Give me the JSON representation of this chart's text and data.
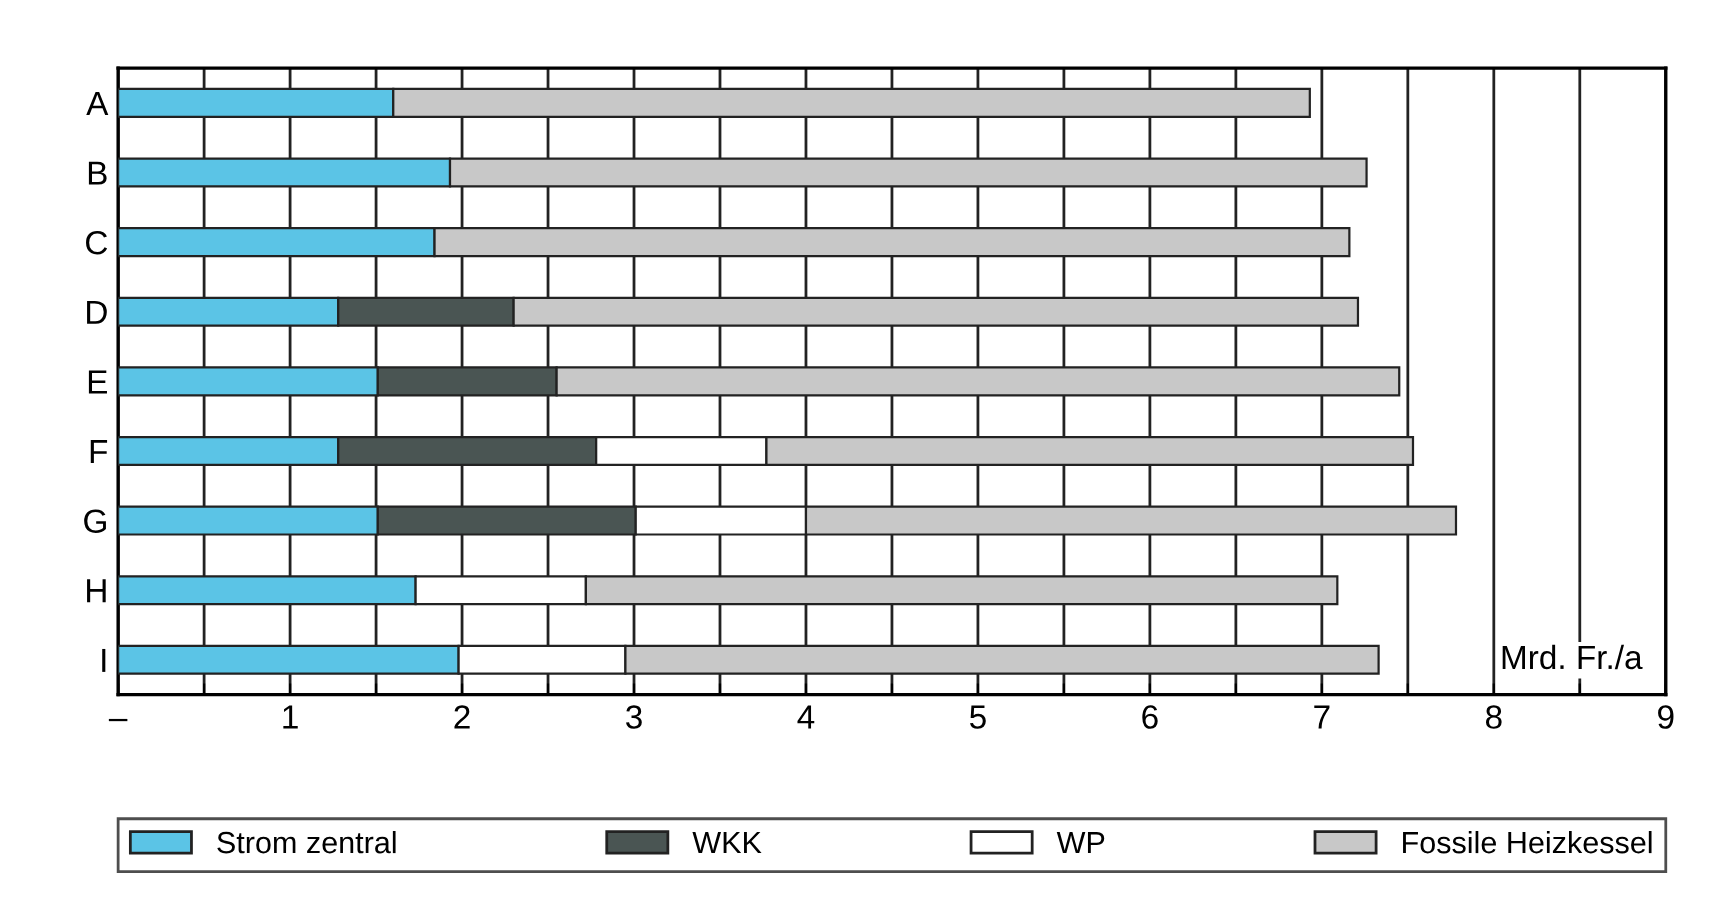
{
  "chart_data": {
    "type": "bar",
    "orientation": "horizontal",
    "stacked": true,
    "categories": [
      "A",
      "B",
      "C",
      "D",
      "E",
      "F",
      "G",
      "H",
      "I"
    ],
    "series": [
      {
        "name": "Strom zentral",
        "color": "#5bc4e6",
        "values": [
          1.6,
          1.93,
          1.84,
          1.28,
          1.51,
          1.28,
          1.51,
          1.73,
          1.98
        ]
      },
      {
        "name": "WKK",
        "color": "#4a5553",
        "values": [
          null,
          null,
          null,
          1.02,
          1.04,
          1.5,
          1.5,
          null,
          null
        ]
      },
      {
        "name": "WP",
        "color": "#ffffff",
        "values": [
          null,
          null,
          null,
          null,
          null,
          0.99,
          0.99,
          0.99,
          0.97
        ]
      },
      {
        "name": "Fossile Heizkessel",
        "color": "#c8c8c8",
        "values": [
          5.33,
          5.33,
          5.32,
          4.91,
          4.9,
          3.76,
          3.78,
          4.37,
          4.38
        ]
      }
    ],
    "xlim": [
      0,
      9
    ],
    "xticks": [
      {
        "value": 0,
        "label": "–"
      },
      {
        "value": 0.5,
        "label": null
      },
      1,
      {
        "value": 1.5,
        "label": null
      },
      2,
      {
        "value": 2.5,
        "label": null
      },
      3,
      {
        "value": 3.5,
        "label": null
      },
      4,
      {
        "value": 4.5,
        "label": null
      },
      5,
      {
        "value": 5.5,
        "label": null
      },
      6,
      {
        "value": 6.5,
        "label": null
      },
      7,
      {
        "value": 7.5,
        "label": null
      },
      8,
      {
        "value": 8.5,
        "label": null
      },
      9
    ],
    "grid": "x",
    "legend": "bottom",
    "annotations": [
      "Mrd. Fr./a"
    ]
  }
}
